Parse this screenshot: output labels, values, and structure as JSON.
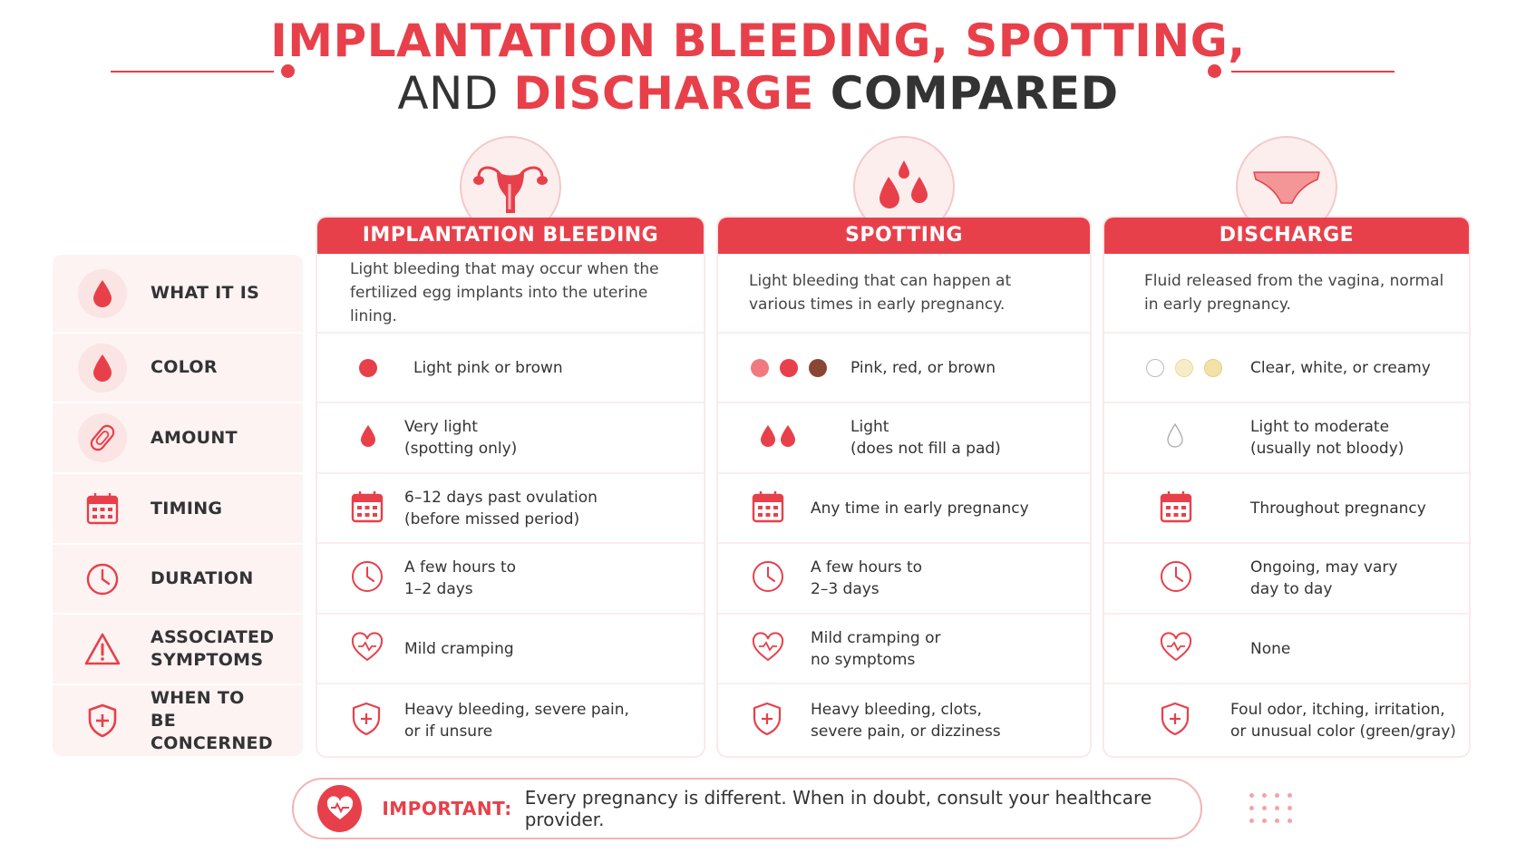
{
  "title": {
    "line1": "IMPLANTATION BLEEDING, SPOTTING,",
    "line2_and": "AND ",
    "line2_discharge": "DISCHARGE",
    "line2_compared": " COMPARED"
  },
  "colors": {
    "accent": "#e8404a",
    "text": "#333333",
    "panel": "#fdf3f3"
  },
  "labels": [
    {
      "text": "WHAT IT IS",
      "icon": "blood-drop-icon"
    },
    {
      "text": "COLOR",
      "icon": "blood-drop-icon"
    },
    {
      "text": "AMOUNT",
      "icon": "pad-icon"
    },
    {
      "text": "TIMING",
      "icon": "calendar-icon"
    },
    {
      "text": "DURATION",
      "icon": "clock-icon"
    },
    {
      "text": "ASSOCIATED SYMPTOMS",
      "icon": "warning-icon"
    },
    {
      "text": "WHEN TO BE CONCERNED",
      "icon": "shield-plus-icon"
    }
  ],
  "columns": [
    {
      "heading": "IMPLANTATION BLEEDING",
      "badge_icon": "uterus-icon",
      "what": "Light bleeding that may occur when the fertilized egg implants into the uterine lining.",
      "color": "Light pink or brown",
      "color_swatches": [
        "#e8404a"
      ],
      "amount": [
        "Very light",
        "(spotting only)"
      ],
      "timing": [
        "6–12 days past ovulation",
        "(before missed period)"
      ],
      "duration": [
        "A few hours to",
        "1–2 days"
      ],
      "symptoms": [
        "Mild cramping"
      ],
      "concern": [
        "Heavy bleeding, severe pain,",
        "or if unsure"
      ]
    },
    {
      "heading": "SPOTTING",
      "badge_icon": "three-drops-icon",
      "what": "Light bleeding that can happen at various times in early pregnancy.",
      "color": "Pink, red, or brown",
      "color_swatches": [
        "#f07a7e",
        "#e8404a",
        "#8a4535"
      ],
      "amount": [
        "Light",
        "(does not fill a pad)"
      ],
      "timing": [
        "Any time in early pregnancy"
      ],
      "duration": [
        "A few hours to",
        "2–3 days"
      ],
      "symptoms": [
        "Mild cramping or",
        "no symptoms"
      ],
      "concern": [
        "Heavy bleeding, clots,",
        "severe pain, or dizziness"
      ]
    },
    {
      "heading": "DISCHARGE",
      "badge_icon": "underwear-icon",
      "what": "Fluid released from the vagina, normal in early pregnancy.",
      "color": "Clear, white, or creamy",
      "color_swatches": [
        "#ffffff",
        "#f8ecc8",
        "#f3e2a8"
      ],
      "amount": [
        "Light to moderate",
        "(usually not bloody)"
      ],
      "timing": [
        "Throughout pregnancy"
      ],
      "duration": [
        "Ongoing, may vary",
        "day to day"
      ],
      "symptoms": [
        "None"
      ],
      "concern": [
        "Foul odor, itching, irritation,",
        "or unusual color (green/gray)"
      ]
    }
  ],
  "banner": {
    "label": "IMPORTANT:",
    "text": "Every pregnancy is different. When in doubt, consult your healthcare provider.",
    "icon": "heart-pulse-icon"
  }
}
